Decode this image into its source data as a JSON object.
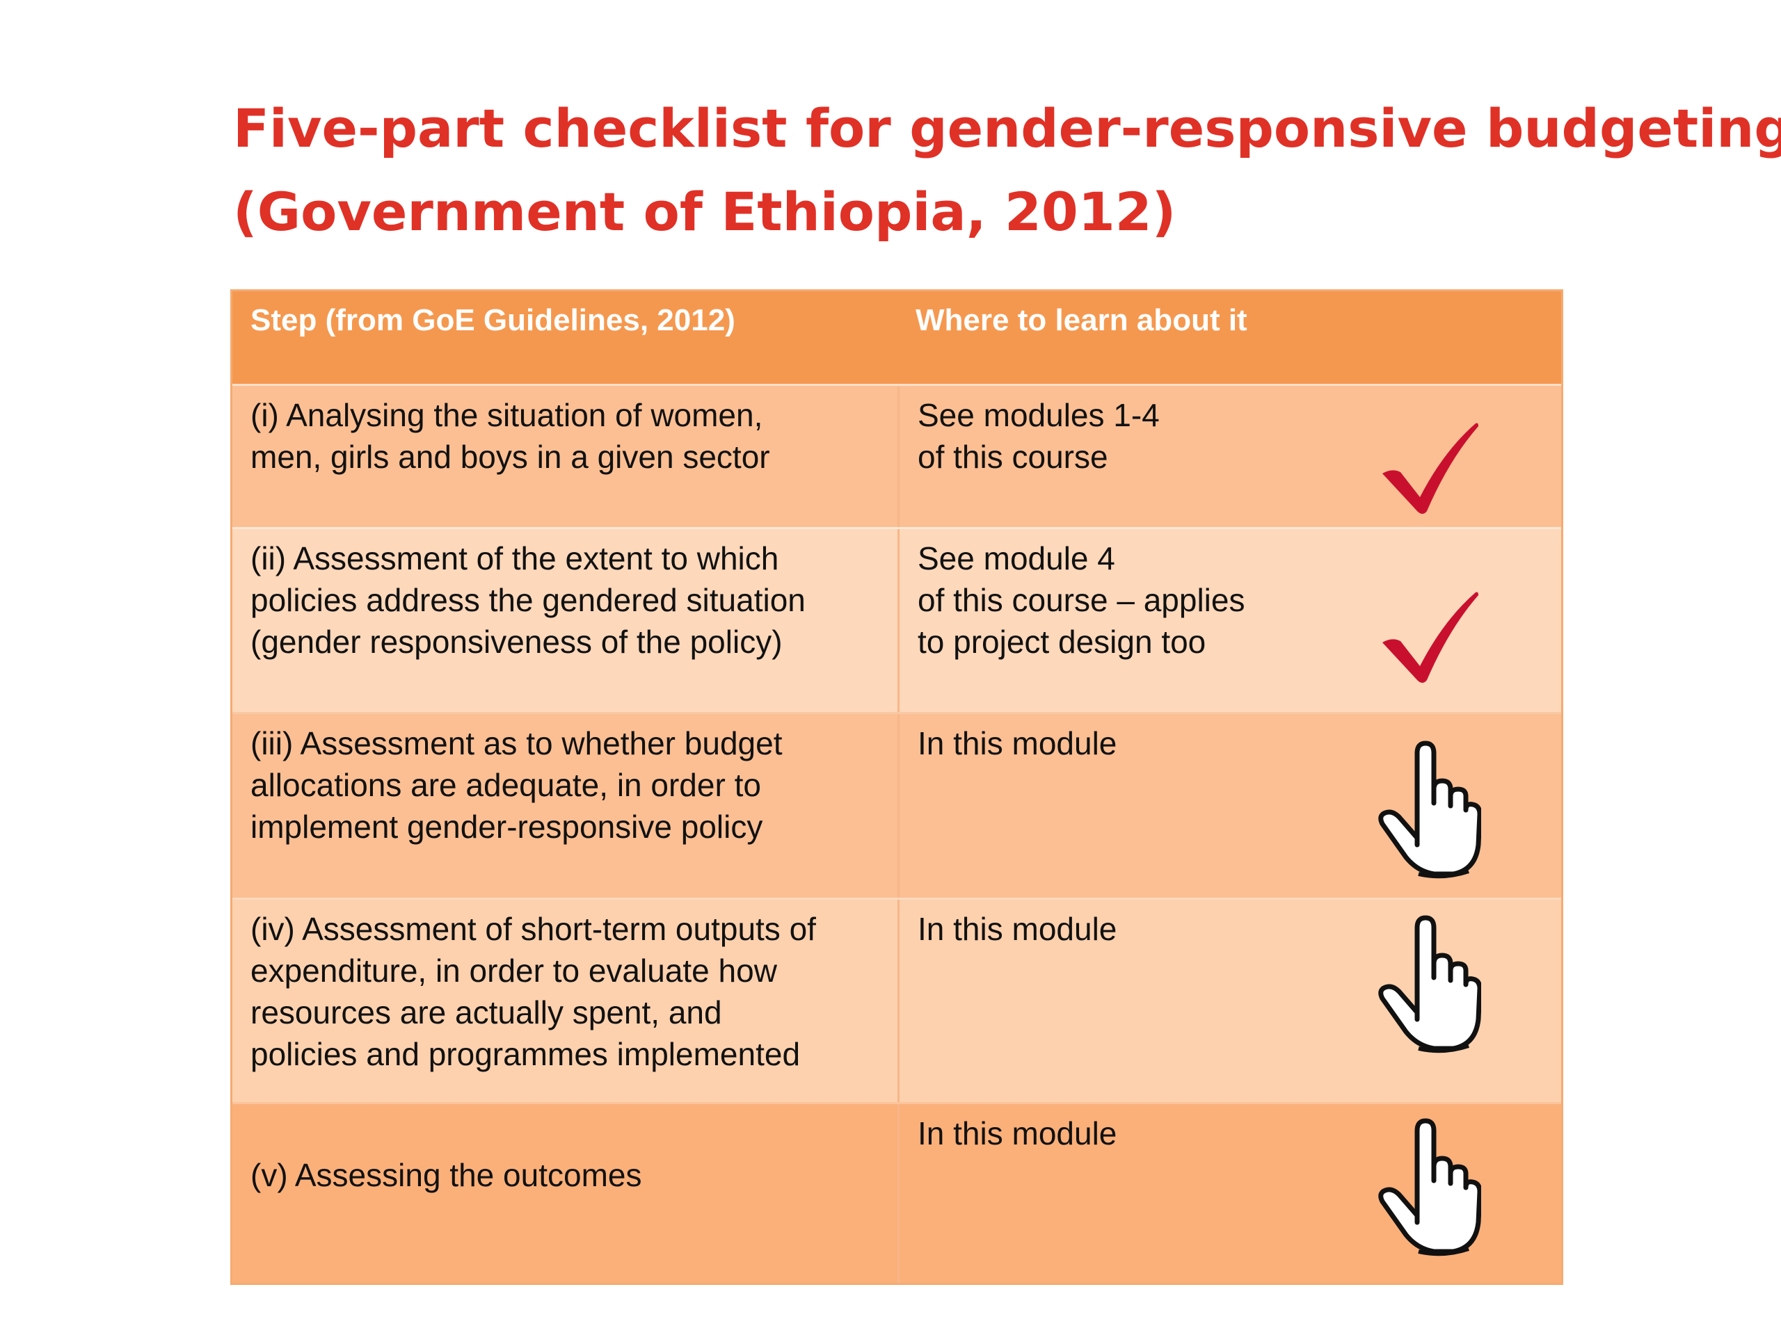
{
  "title": {
    "line1": "Five-part checklist for gender-responsive budgeting",
    "line2": "(Government of Ethiopia, 2012)"
  },
  "table": {
    "header": {
      "step": "Step (from GoE Guidelines, 2012)",
      "where": "Where to learn about it"
    },
    "rows": [
      {
        "step": [
          "(i) Analysing the situation of women,",
          "men, girls and boys in a given sector"
        ],
        "where": [
          "See modules 1-4",
          "of this course"
        ],
        "icon": "checkmark-icon",
        "icon_color": "#c8102e"
      },
      {
        "step": [
          "(ii) Assessment of the extent to which",
          "policies address the gendered situation",
          "(gender responsiveness of the policy)"
        ],
        "where": [
          "See module 4",
          "of this course – applies",
          "to project design too"
        ],
        "icon": "checkmark-icon",
        "icon_color": "#c8102e"
      },
      {
        "step": [
          "(iii) Assessment as to whether budget",
          "allocations are adequate, in order to",
          "implement gender-responsive policy"
        ],
        "where": [
          "In this module"
        ],
        "icon": "pointing-hand-icon"
      },
      {
        "step": [
          "(iv) Assessment of short-term outputs of",
          "expenditure, in order to evaluate how",
          "resources are actually spent, and",
          "policies and programmes implemented"
        ],
        "where": [
          "In this module"
        ],
        "icon": "pointing-hand-icon"
      },
      {
        "step": [
          "(v) Assessing the outcomes"
        ],
        "where": [
          "In this module"
        ],
        "icon": "pointing-hand-icon"
      }
    ]
  },
  "colors": {
    "title": "#e03127",
    "header_bg": "#f5984f",
    "check": "#c8102e"
  }
}
